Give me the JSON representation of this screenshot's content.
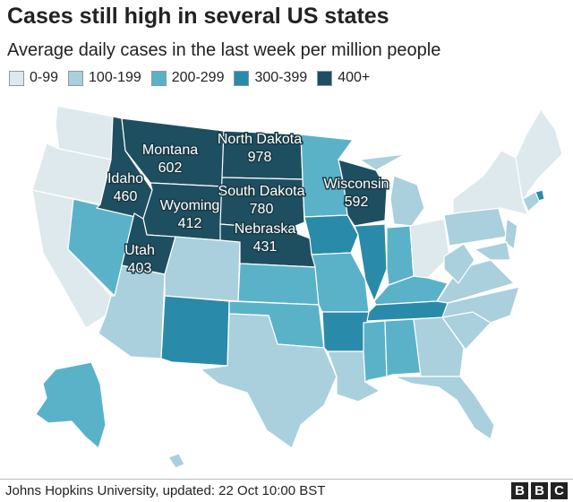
{
  "title": "Cases still high in several US states",
  "subtitle": "Average daily cases in the last week per million people",
  "legend": [
    {
      "label": "0-99",
      "color": "#dde9ec"
    },
    {
      "label": "100-199",
      "color": "#a9d0dc"
    },
    {
      "label": "200-299",
      "color": "#5ab2c9"
    },
    {
      "label": "300-399",
      "color": "#2a8aa9"
    },
    {
      "label": "400+",
      "color": "#1e4f60"
    }
  ],
  "states": [
    {
      "name": "Montana",
      "value": "602"
    },
    {
      "name": "North Dakota",
      "value": "978"
    },
    {
      "name": "Idaho",
      "value": "460"
    },
    {
      "name": "South Dakota",
      "value": "780"
    },
    {
      "name": "Wisconsin",
      "value": "592"
    },
    {
      "name": "Wyoming",
      "value": "412"
    },
    {
      "name": "Nebraska",
      "value": "431"
    },
    {
      "name": "Utah",
      "value": "403"
    }
  ],
  "source": "Johns Hopkins University, updated: 22 Oct 10:00 BST",
  "brand": [
    "B",
    "B",
    "C"
  ]
}
